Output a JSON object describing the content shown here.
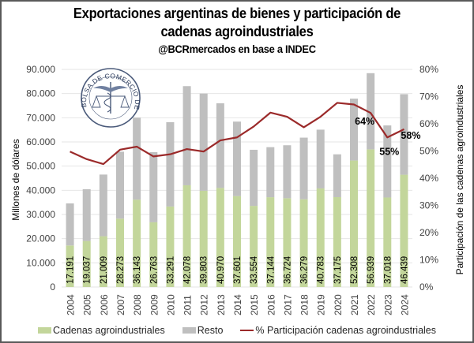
{
  "header": {
    "title_line1": "Exportaciones argentinas de bienes y participación de",
    "title_line2": "cadenas agroindustriales",
    "subtitle": "@BCRmercados en base a INDEC"
  },
  "logo": {
    "text": "BOLSA DE COMERCIO DE ROSARIO",
    "icon": "caduceus-scales-seal-icon"
  },
  "colors": {
    "agro": "#c3d69b",
    "resto": "#bfbfbf",
    "line": "#9b2a2a",
    "grid": "#e6e6e6"
  },
  "chart_data": {
    "type": "bar",
    "stacked": true,
    "title": "Exportaciones argentinas de bienes y participación de cadenas agroindustriales",
    "subtitle": "@BCRmercados en base a INDEC",
    "xlabel": "",
    "ylabel": "Millones de dólares",
    "y2label": "Participación de las cadenas agroindustriales",
    "categories": [
      "2004",
      "2005",
      "2006",
      "2007",
      "2008",
      "2009",
      "2010",
      "2011",
      "2012",
      "2013",
      "2014",
      "2015",
      "2016",
      "2017",
      "2018",
      "2019",
      "2020",
      "2021",
      "2022",
      "2023",
      "2024"
    ],
    "ylim": [
      0,
      90000
    ],
    "yticks": [
      0,
      10000,
      20000,
      30000,
      40000,
      50000,
      60000,
      70000,
      80000,
      90000
    ],
    "ytick_labels": [
      "0",
      "10.000",
      "20.000",
      "30.000",
      "40.000",
      "50.000",
      "60.000",
      "70.000",
      "80.000",
      "90.000"
    ],
    "y2lim": [
      0,
      0.8
    ],
    "y2ticks": [
      0,
      0.1,
      0.2,
      0.3,
      0.4,
      0.5,
      0.6,
      0.7,
      0.8
    ],
    "y2tick_labels": [
      "0%",
      "10%",
      "20%",
      "30%",
      "40%",
      "50%",
      "60%",
      "70%",
      "80%"
    ],
    "grid": true,
    "legend_position": "bottom",
    "series": [
      {
        "name": "Cadenas agroindustriales",
        "type": "bar",
        "axis": "left",
        "values": [
          17191,
          19037,
          21009,
          28273,
          36143,
          26763,
          33291,
          42078,
          39803,
          40970,
          37601,
          33554,
          37144,
          36724,
          36279,
          40783,
          37175,
          52308,
          56939,
          37018,
          46439
        ],
        "labels": [
          "17.191",
          "19.037",
          "21.009",
          "28.273",
          "36.143",
          "26.763",
          "33.291",
          "42.078",
          "39.803",
          "40.970",
          "37.601",
          "33.554",
          "37.144",
          "36.724",
          "36.279",
          "40.783",
          "37.175",
          "52.308",
          "56.939",
          "37.018",
          "46.439"
        ]
      },
      {
        "name": "Resto",
        "type": "bar",
        "axis": "left",
        "values": [
          17400,
          21400,
          25500,
          27700,
          33900,
          29000,
          34900,
          41000,
          40200,
          35000,
          30800,
          23200,
          20700,
          21900,
          25500,
          24300,
          17700,
          25600,
          31500,
          29800,
          33300
        ]
      },
      {
        "name": "% Participación cadenas agroindustriales",
        "type": "line",
        "axis": "right",
        "values": [
          0.498,
          0.47,
          0.452,
          0.505,
          0.516,
          0.48,
          0.488,
          0.507,
          0.498,
          0.539,
          0.55,
          0.59,
          0.641,
          0.626,
          0.587,
          0.626,
          0.677,
          0.671,
          0.64,
          0.55,
          0.58
        ],
        "point_labels": {
          "18": "64%",
          "19": "55%",
          "20": "58%"
        }
      }
    ]
  },
  "legend": {
    "items": [
      "Cadenas agroindustriales",
      "Resto",
      "% Participación cadenas agroindustriales"
    ]
  }
}
